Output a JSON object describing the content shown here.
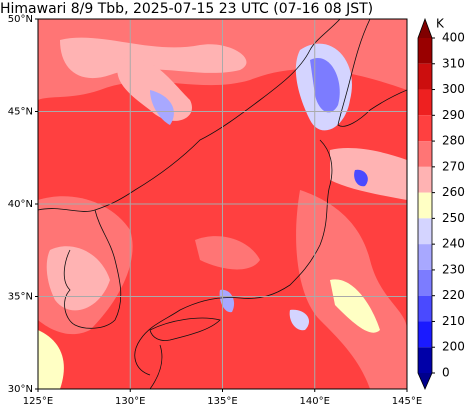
{
  "title": "Himawari 8/9 Tbb, 2025-07-15 23 UTC (07-16 08 JST)",
  "map": {
    "xlim": [
      125,
      145
    ],
    "ylim": [
      30,
      50
    ],
    "xticks": [
      {
        "value": 125,
        "label": "125°E"
      },
      {
        "value": 130,
        "label": "130°E"
      },
      {
        "value": 135,
        "label": "135°E"
      },
      {
        "value": 140,
        "label": "140°E"
      },
      {
        "value": 145,
        "label": "145°E"
      }
    ],
    "yticks": [
      {
        "value": 30,
        "label": "30°N"
      },
      {
        "value": 35,
        "label": "35°N"
      },
      {
        "value": 40,
        "label": "40°N"
      },
      {
        "value": 45,
        "label": "45°N"
      },
      {
        "value": 50,
        "label": "50°N"
      }
    ],
    "grid": true
  },
  "colorbar": {
    "unit": "K",
    "ticks": [
      400,
      310,
      300,
      290,
      280,
      270,
      260,
      250,
      240,
      230,
      220,
      210,
      200,
      0
    ],
    "colors": [
      "#990000",
      "#cc0e0e",
      "#ee2020",
      "#ff4040",
      "#ff7575",
      "#ffb3b3",
      "#ffffc4",
      "#d4d4ff",
      "#a8a8ff",
      "#7c7cff",
      "#4a4aff",
      "#1a1aff",
      "#0000a8"
    ],
    "over_color": "#800000",
    "under_color": "#00008c"
  }
}
